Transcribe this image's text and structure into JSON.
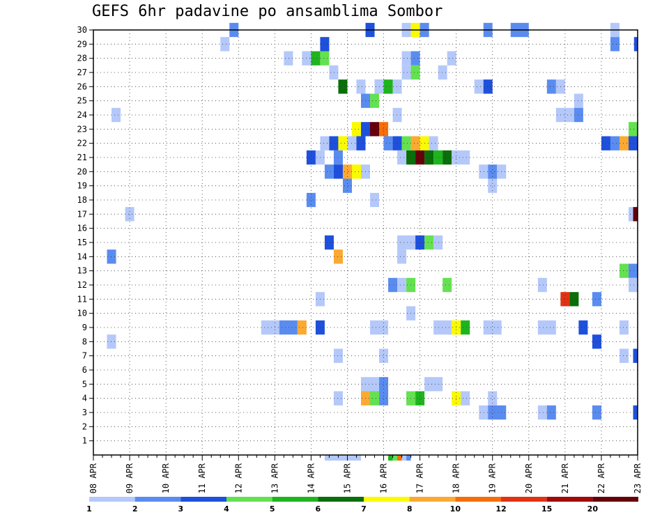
{
  "chart_data": {
    "type": "heatmap",
    "title": "GEFS 6hr padavine po ansamblima Sombor",
    "xlabel": "",
    "ylabel": "",
    "x_tick_labels": [
      "08 APR",
      "09 APR",
      "10 APR",
      "11 APR",
      "12 APR",
      "13 APR",
      "14 APR",
      "15 APR",
      "16 APR",
      "17 APR",
      "18 APR",
      "19 APR",
      "20 APR",
      "21 APR",
      "22 APR",
      "23 APR"
    ],
    "x_steps_per_day": 4,
    "x_range_steps": [
      0,
      60
    ],
    "y_tick_labels": [
      "1",
      "2",
      "3",
      "4",
      "5",
      "6",
      "7",
      "8",
      "9",
      "10",
      "11",
      "12",
      "13",
      "14",
      "15",
      "16",
      "17",
      "18",
      "19",
      "20",
      "21",
      "22",
      "23",
      "24",
      "25",
      "26",
      "27",
      "28",
      "29",
      "30"
    ],
    "y_range": [
      0,
      30
    ],
    "grid": true,
    "legend": {
      "placement": "bottom",
      "thresholds": [
        "1",
        "2",
        "3",
        "4",
        "5",
        "6",
        "7",
        "8",
        "10",
        "12",
        "15",
        "20"
      ],
      "colors": [
        "#b4c8fa",
        "#5a8cf0",
        "#1e50dc",
        "#64e150",
        "#1eb41e",
        "#0a6e0a",
        "#fafa00",
        "#faaa32",
        "#f56e0a",
        "#e13212",
        "#a00a0a",
        "#64000a"
      ]
    },
    "cells": [
      [
        30,
        14.5,
        0,
        1
      ],
      [
        30,
        14.5,
        3,
        1
      ],
      [
        30,
        15,
        2,
        1
      ],
      [
        30,
        15,
        3,
        2
      ],
      [
        30,
        15.75,
        2,
        1
      ],
      [
        30,
        20.25,
        30,
        2
      ],
      [
        30,
        20.5,
        30,
        2
      ],
      [
        30,
        21.25,
        30,
        1
      ],
      [
        30,
        21.5,
        29,
        3
      ],
      [
        30,
        22.5,
        30,
        1
      ],
      [
        30,
        20.5,
        30,
        1
      ],
      [
        30,
        21.5,
        28,
        2
      ],
      [
        30,
        22,
        29,
        3
      ],
      [
        30,
        22.25,
        28,
        1
      ],
      [
        30,
        22.5,
        27,
        1
      ],
      [
        30,
        22.75,
        30,
        1
      ]
    ]
  }
}
